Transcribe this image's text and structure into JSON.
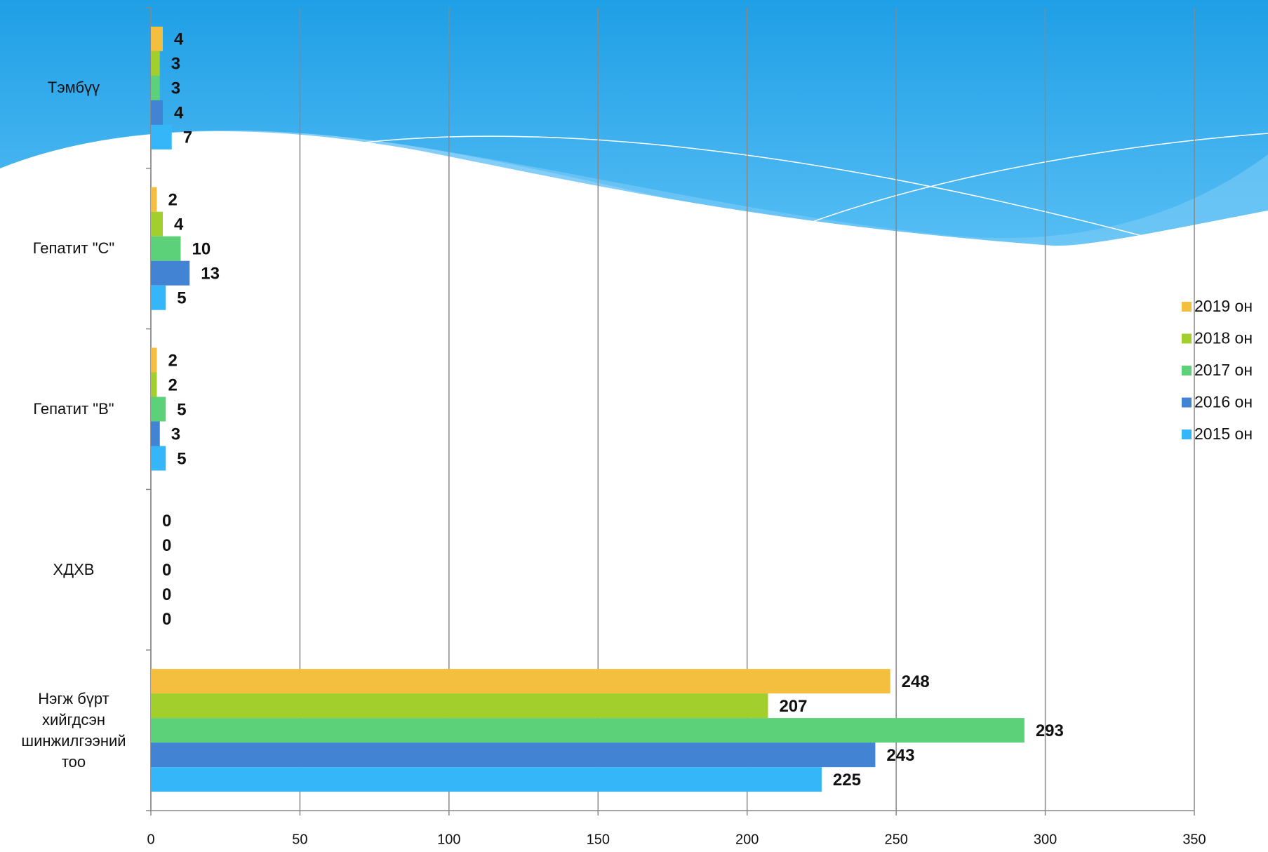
{
  "chart_data": {
    "type": "bar",
    "orientation": "horizontal",
    "categories": [
      "Тэмбүү",
      "Гепатит \"С\"",
      "Гепатит \"В\"",
      "ХДХВ",
      "Нэгж бүрт хийгдсэн шинжилгээний тоо"
    ],
    "series": [
      {
        "name": "2019 он",
        "color": "#f4bf3e",
        "values": [
          4,
          2,
          2,
          0,
          248
        ]
      },
      {
        "name": "2018 он",
        "color": "#a2cf2b",
        "values": [
          3,
          4,
          2,
          0,
          207
        ]
      },
      {
        "name": "2017 он",
        "color": "#5dd17a",
        "values": [
          3,
          10,
          5,
          0,
          293
        ]
      },
      {
        "name": "2016 он",
        "color": "#4383d4",
        "values": [
          4,
          13,
          3,
          0,
          243
        ]
      },
      {
        "name": "2015 он",
        "color": "#34b6f8",
        "values": [
          7,
          5,
          5,
          0,
          225
        ]
      }
    ],
    "xlim": [
      0,
      350
    ],
    "xticks": [
      0,
      50,
      100,
      150,
      200,
      250,
      300,
      350
    ],
    "grid": true,
    "legend": "right"
  }
}
